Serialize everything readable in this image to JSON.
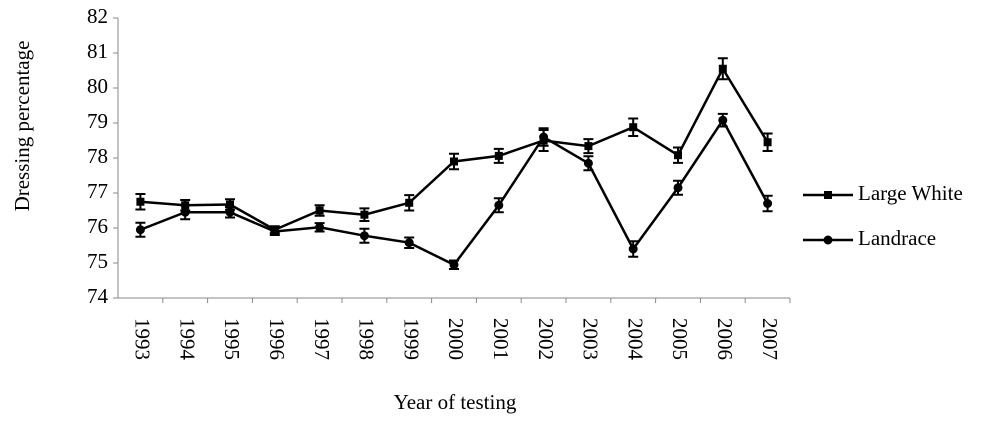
{
  "chart_data": {
    "type": "line",
    "x_label": "Year of testing",
    "y_label": "Dressing percentage",
    "categories": [
      "1993",
      "1994",
      "1995",
      "1996",
      "1997",
      "1998",
      "1999",
      "2000",
      "2001",
      "2002",
      "2003",
      "2004",
      "2005",
      "2006",
      "2007"
    ],
    "series": [
      {
        "name": "Large White",
        "color": "#000000",
        "marker": "square",
        "values": [
          76.75,
          76.65,
          76.67,
          75.95,
          76.5,
          76.38,
          76.72,
          77.9,
          78.06,
          78.5,
          78.34,
          78.88,
          78.08,
          80.55,
          78.45
        ],
        "errors": [
          0.22,
          0.15,
          0.15,
          0.1,
          0.15,
          0.18,
          0.22,
          0.22,
          0.2,
          0.3,
          0.2,
          0.25,
          0.22,
          0.3,
          0.25
        ]
      },
      {
        "name": "Landrace",
        "color": "#000000",
        "marker": "circle",
        "values": [
          75.95,
          76.45,
          76.45,
          75.9,
          76.02,
          75.78,
          75.58,
          74.95,
          76.65,
          78.6,
          77.85,
          75.4,
          77.15,
          79.08,
          76.7
        ],
        "errors": [
          0.2,
          0.2,
          0.15,
          0.1,
          0.12,
          0.2,
          0.15,
          0.12,
          0.2,
          0.25,
          0.2,
          0.22,
          0.2,
          0.18,
          0.22
        ]
      }
    ],
    "ylim": [
      74,
      82
    ],
    "yticks": [
      74,
      75,
      76,
      77,
      78,
      79,
      80,
      81,
      82
    ],
    "grid": false,
    "legend": "right"
  }
}
